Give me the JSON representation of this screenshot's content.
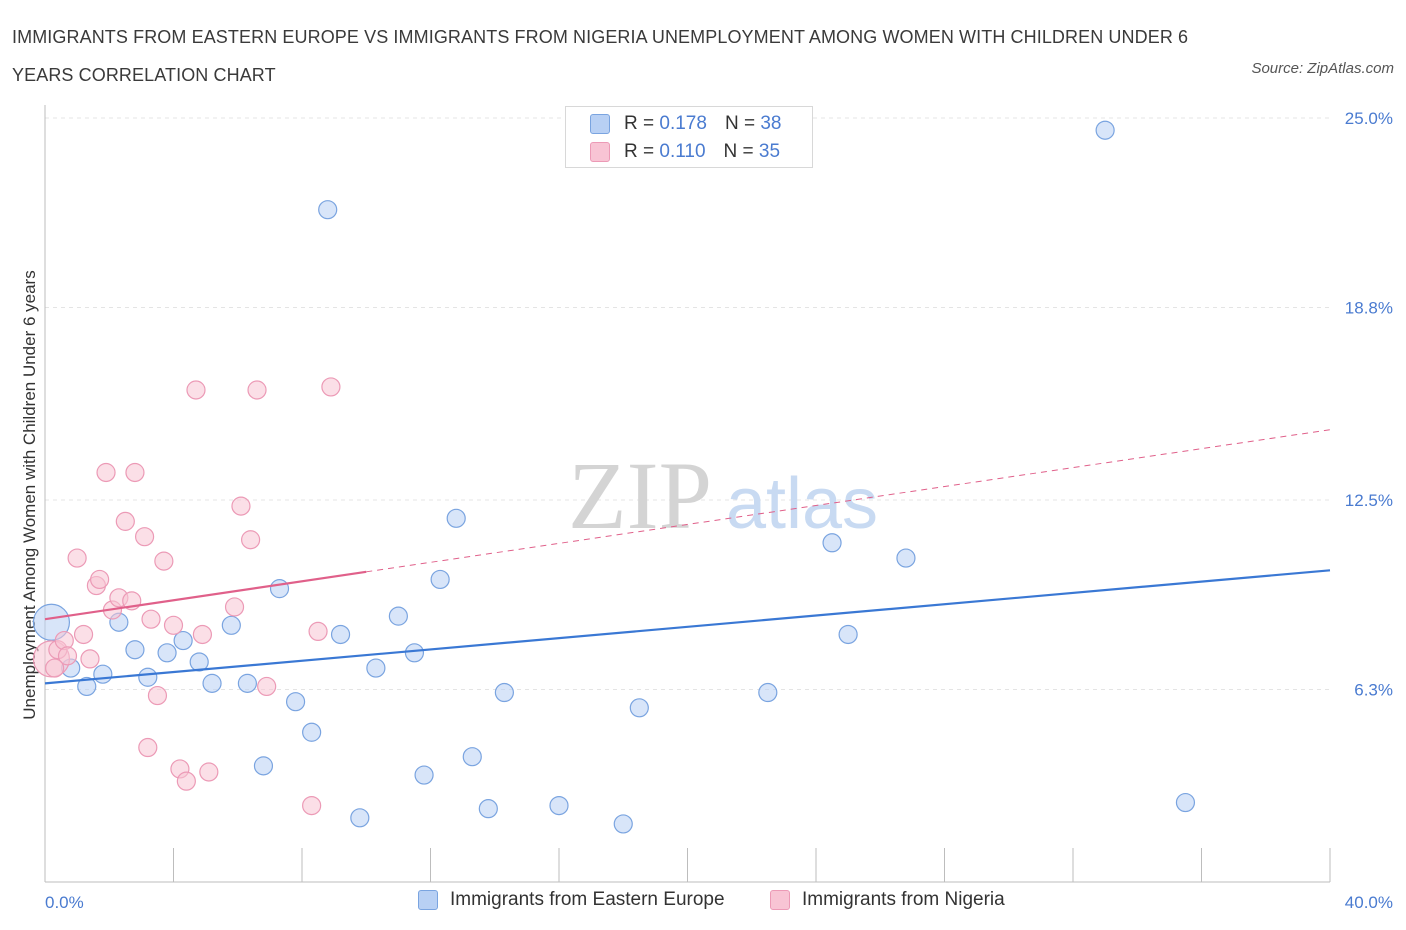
{
  "title": "IMMIGRANTS FROM EASTERN EUROPE VS IMMIGRANTS FROM NIGERIA UNEMPLOYMENT AMONG WOMEN WITH CHILDREN UNDER 6 YEARS CORRELATION CHART",
  "source": "Source: ZipAtlas.com",
  "watermark": {
    "zip": "ZIP",
    "atlas": "atlas"
  },
  "legend": {
    "rows": [
      {
        "r_label": "R =",
        "r_value": "0.178",
        "n_label": "N =",
        "n_value": "38"
      },
      {
        "r_label": "R =",
        "r_value": "0.110",
        "n_label": "N =",
        "n_value": "35"
      }
    ]
  },
  "colors": {
    "eastern_europe_fill": "#b8d0f4",
    "eastern_europe_stroke": "#7aa4e0",
    "eastern_europe_line": "#3a78d4",
    "nigeria_fill": "#f8c4d4",
    "nigeria_stroke": "#ec9ab6",
    "nigeria_line": "#e0608a",
    "axis_text": "#4a7bd0",
    "grid": "#e4e4e4"
  },
  "chart_data": {
    "type": "scatter",
    "title": "IMMIGRANTS FROM EASTERN EUROPE VS IMMIGRANTS FROM NIGERIA UNEMPLOYMENT AMONG WOMEN WITH CHILDREN UNDER 6 YEARS CORRELATION CHART",
    "xlabel": "",
    "ylabel": "Unemployment Among Women with Children Under 6 years",
    "xlim": [
      0,
      40
    ],
    "ylim": [
      0,
      25
    ],
    "x_tick_labels": [
      "0.0%",
      "40.0%"
    ],
    "y_ticks": [
      6.3,
      12.5,
      18.8,
      25.0
    ],
    "y_tick_labels": [
      "6.3%",
      "12.5%",
      "18.8%",
      "25.0%"
    ],
    "grid": true,
    "legend_position": "top-center",
    "series": [
      {
        "name": "Immigrants from Eastern Europe",
        "R": 0.178,
        "N": 38,
        "trend": {
          "x0": 0,
          "y0": 6.5,
          "x1": 40,
          "y1": 10.2,
          "dashed_from": null
        },
        "points": [
          {
            "x": 0.2,
            "y": 8.5,
            "size": "large"
          },
          {
            "x": 0.8,
            "y": 7.0
          },
          {
            "x": 1.3,
            "y": 6.4
          },
          {
            "x": 1.8,
            "y": 6.8
          },
          {
            "x": 2.3,
            "y": 8.5
          },
          {
            "x": 2.8,
            "y": 7.6
          },
          {
            "x": 3.2,
            "y": 6.7
          },
          {
            "x": 3.8,
            "y": 7.5
          },
          {
            "x": 4.3,
            "y": 7.9
          },
          {
            "x": 4.8,
            "y": 7.2
          },
          {
            "x": 5.2,
            "y": 6.5
          },
          {
            "x": 5.8,
            "y": 8.4
          },
          {
            "x": 6.3,
            "y": 6.5
          },
          {
            "x": 6.8,
            "y": 3.8
          },
          {
            "x": 7.3,
            "y": 9.6
          },
          {
            "x": 7.8,
            "y": 5.9
          },
          {
            "x": 8.3,
            "y": 4.9
          },
          {
            "x": 8.8,
            "y": 22.0
          },
          {
            "x": 9.2,
            "y": 8.1
          },
          {
            "x": 9.8,
            "y": 2.1
          },
          {
            "x": 10.3,
            "y": 7.0
          },
          {
            "x": 11.0,
            "y": 8.7
          },
          {
            "x": 11.5,
            "y": 7.5
          },
          {
            "x": 11.8,
            "y": 3.5
          },
          {
            "x": 12.3,
            "y": 9.9
          },
          {
            "x": 12.8,
            "y": 11.9
          },
          {
            "x": 13.3,
            "y": 4.1
          },
          {
            "x": 13.8,
            "y": 2.4
          },
          {
            "x": 14.3,
            "y": 6.2
          },
          {
            "x": 16.0,
            "y": 2.5
          },
          {
            "x": 18.0,
            "y": 1.9
          },
          {
            "x": 18.5,
            "y": 5.7
          },
          {
            "x": 22.5,
            "y": 6.2
          },
          {
            "x": 24.5,
            "y": 11.1
          },
          {
            "x": 25.0,
            "y": 8.1
          },
          {
            "x": 26.8,
            "y": 10.6
          },
          {
            "x": 33.0,
            "y": 24.6
          },
          {
            "x": 35.5,
            "y": 2.6
          }
        ]
      },
      {
        "name": "Immigrants from Nigeria",
        "R": 0.11,
        "N": 35,
        "trend": {
          "x0": 0,
          "y0": 8.6,
          "x1": 40,
          "y1": 14.8,
          "solid_until": 10
        },
        "points": [
          {
            "x": 0.2,
            "y": 7.3,
            "size": "large"
          },
          {
            "x": 0.4,
            "y": 7.6
          },
          {
            "x": 0.6,
            "y": 7.9
          },
          {
            "x": 0.7,
            "y": 7.4
          },
          {
            "x": 1.0,
            "y": 10.6
          },
          {
            "x": 1.2,
            "y": 8.1
          },
          {
            "x": 1.4,
            "y": 7.3
          },
          {
            "x": 1.6,
            "y": 9.7
          },
          {
            "x": 1.7,
            "y": 9.9
          },
          {
            "x": 1.9,
            "y": 13.4
          },
          {
            "x": 2.1,
            "y": 8.9
          },
          {
            "x": 2.3,
            "y": 9.3
          },
          {
            "x": 2.5,
            "y": 11.8
          },
          {
            "x": 2.7,
            "y": 9.2
          },
          {
            "x": 2.8,
            "y": 13.4
          },
          {
            "x": 3.1,
            "y": 11.3
          },
          {
            "x": 3.2,
            "y": 4.4
          },
          {
            "x": 3.3,
            "y": 8.6
          },
          {
            "x": 3.5,
            "y": 6.1
          },
          {
            "x": 3.7,
            "y": 10.5
          },
          {
            "x": 4.0,
            "y": 8.4
          },
          {
            "x": 4.2,
            "y": 3.7
          },
          {
            "x": 4.4,
            "y": 3.3
          },
          {
            "x": 4.7,
            "y": 16.1
          },
          {
            "x": 4.9,
            "y": 8.1
          },
          {
            "x": 5.1,
            "y": 3.6
          },
          {
            "x": 5.9,
            "y": 9.0
          },
          {
            "x": 6.1,
            "y": 12.3
          },
          {
            "x": 6.4,
            "y": 11.2
          },
          {
            "x": 6.6,
            "y": 16.1
          },
          {
            "x": 6.9,
            "y": 6.4
          },
          {
            "x": 8.3,
            "y": 2.5
          },
          {
            "x": 8.5,
            "y": 8.2
          },
          {
            "x": 8.9,
            "y": 16.2
          },
          {
            "x": 0.3,
            "y": 7.0
          }
        ]
      }
    ]
  }
}
